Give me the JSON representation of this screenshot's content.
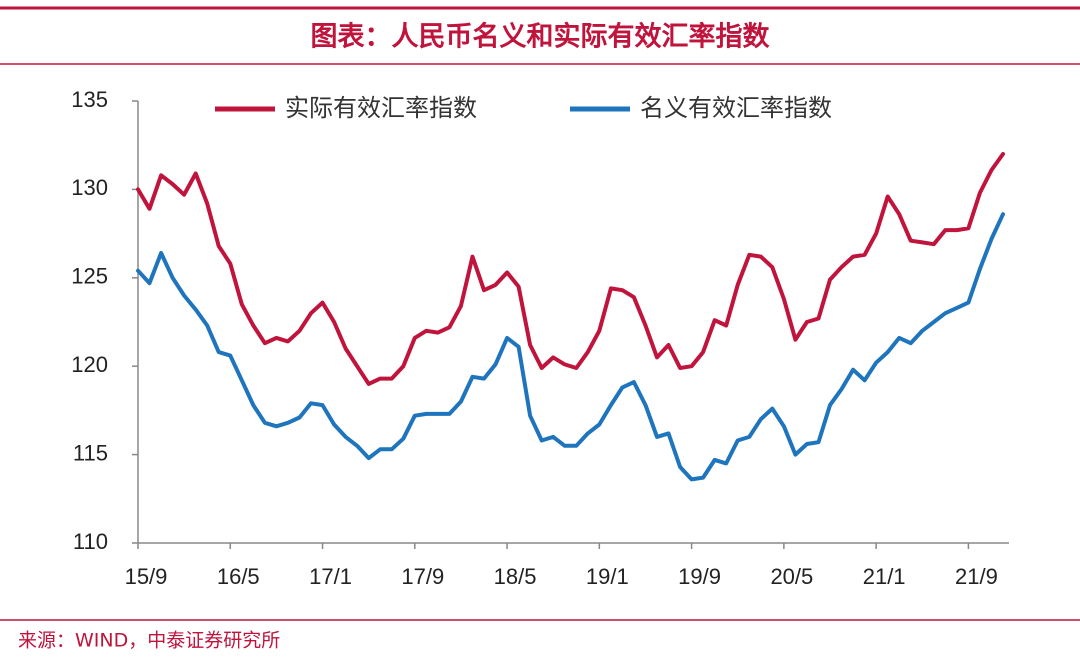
{
  "title": "图表：人民币名义和实际有效汇率指数",
  "source": "来源：WIND，中泰证券研究所",
  "chart_data": {
    "type": "line",
    "categories": [
      "15/9",
      null,
      null,
      null,
      null,
      null,
      null,
      null,
      "16/5",
      null,
      null,
      null,
      null,
      null,
      null,
      null,
      "17/1",
      null,
      null,
      null,
      null,
      null,
      null,
      null,
      "17/9",
      null,
      null,
      null,
      null,
      null,
      null,
      null,
      "18/5",
      null,
      null,
      null,
      null,
      null,
      null,
      null,
      "19/1",
      null,
      null,
      null,
      null,
      null,
      null,
      null,
      "19/9",
      null,
      null,
      null,
      null,
      null,
      null,
      null,
      "20/5",
      null,
      null,
      null,
      null,
      null,
      null,
      null,
      "21/1",
      null,
      null,
      null,
      null,
      null,
      null,
      null,
      "21/9",
      null,
      null,
      null
    ],
    "series": [
      {
        "name": "实际有效汇率指数",
        "color": "#c0143c",
        "values": [
          130.0,
          128.9,
          130.8,
          130.3,
          129.7,
          130.9,
          129.2,
          126.8,
          125.8,
          123.5,
          122.3,
          121.3,
          121.6,
          121.4,
          122.0,
          123.0,
          123.6,
          122.5,
          121.0,
          120.0,
          119.0,
          119.3,
          119.3,
          120.0,
          121.6,
          122.0,
          121.9,
          122.2,
          123.4,
          126.2,
          124.3,
          124.6,
          125.3,
          124.5,
          121.2,
          119.9,
          120.5,
          120.1,
          119.9,
          120.8,
          122.0,
          124.4,
          124.3,
          123.9,
          122.3,
          120.5,
          121.2,
          119.9,
          120.0,
          120.8,
          122.6,
          122.3,
          124.6,
          126.3,
          126.2,
          125.6,
          123.8,
          121.5,
          122.5,
          122.7,
          124.9,
          125.6,
          126.2,
          126.3,
          127.5,
          129.6,
          128.6,
          127.1,
          127.0,
          126.9,
          127.7,
          127.7,
          127.8,
          129.8,
          131.1,
          132.0
        ]
      },
      {
        "name": "名义有效汇率指数",
        "color": "#1f75bd",
        "values": [
          125.4,
          124.7,
          126.4,
          125.0,
          124.0,
          123.2,
          122.3,
          120.8,
          120.6,
          119.2,
          117.8,
          116.8,
          116.6,
          116.8,
          117.1,
          117.9,
          117.8,
          116.7,
          116.0,
          115.5,
          114.8,
          115.3,
          115.3,
          115.9,
          117.2,
          117.3,
          117.3,
          117.3,
          118.0,
          119.4,
          119.3,
          120.1,
          121.6,
          121.1,
          117.2,
          115.8,
          116.0,
          115.5,
          115.5,
          116.2,
          116.7,
          117.8,
          118.8,
          119.1,
          117.8,
          116.0,
          116.2,
          114.3,
          113.6,
          113.7,
          114.7,
          114.5,
          115.8,
          116.0,
          117.0,
          117.6,
          116.6,
          115.0,
          115.6,
          115.7,
          117.8,
          118.7,
          119.8,
          119.2,
          120.2,
          120.8,
          121.6,
          121.3,
          122.0,
          122.5,
          123.0,
          123.3,
          123.6,
          125.5,
          127.2,
          128.6
        ]
      }
    ],
    "ylim": [
      110,
      135
    ],
    "yticks": [
      110,
      115,
      120,
      125,
      130,
      135
    ],
    "grid": false,
    "legend": "top"
  }
}
